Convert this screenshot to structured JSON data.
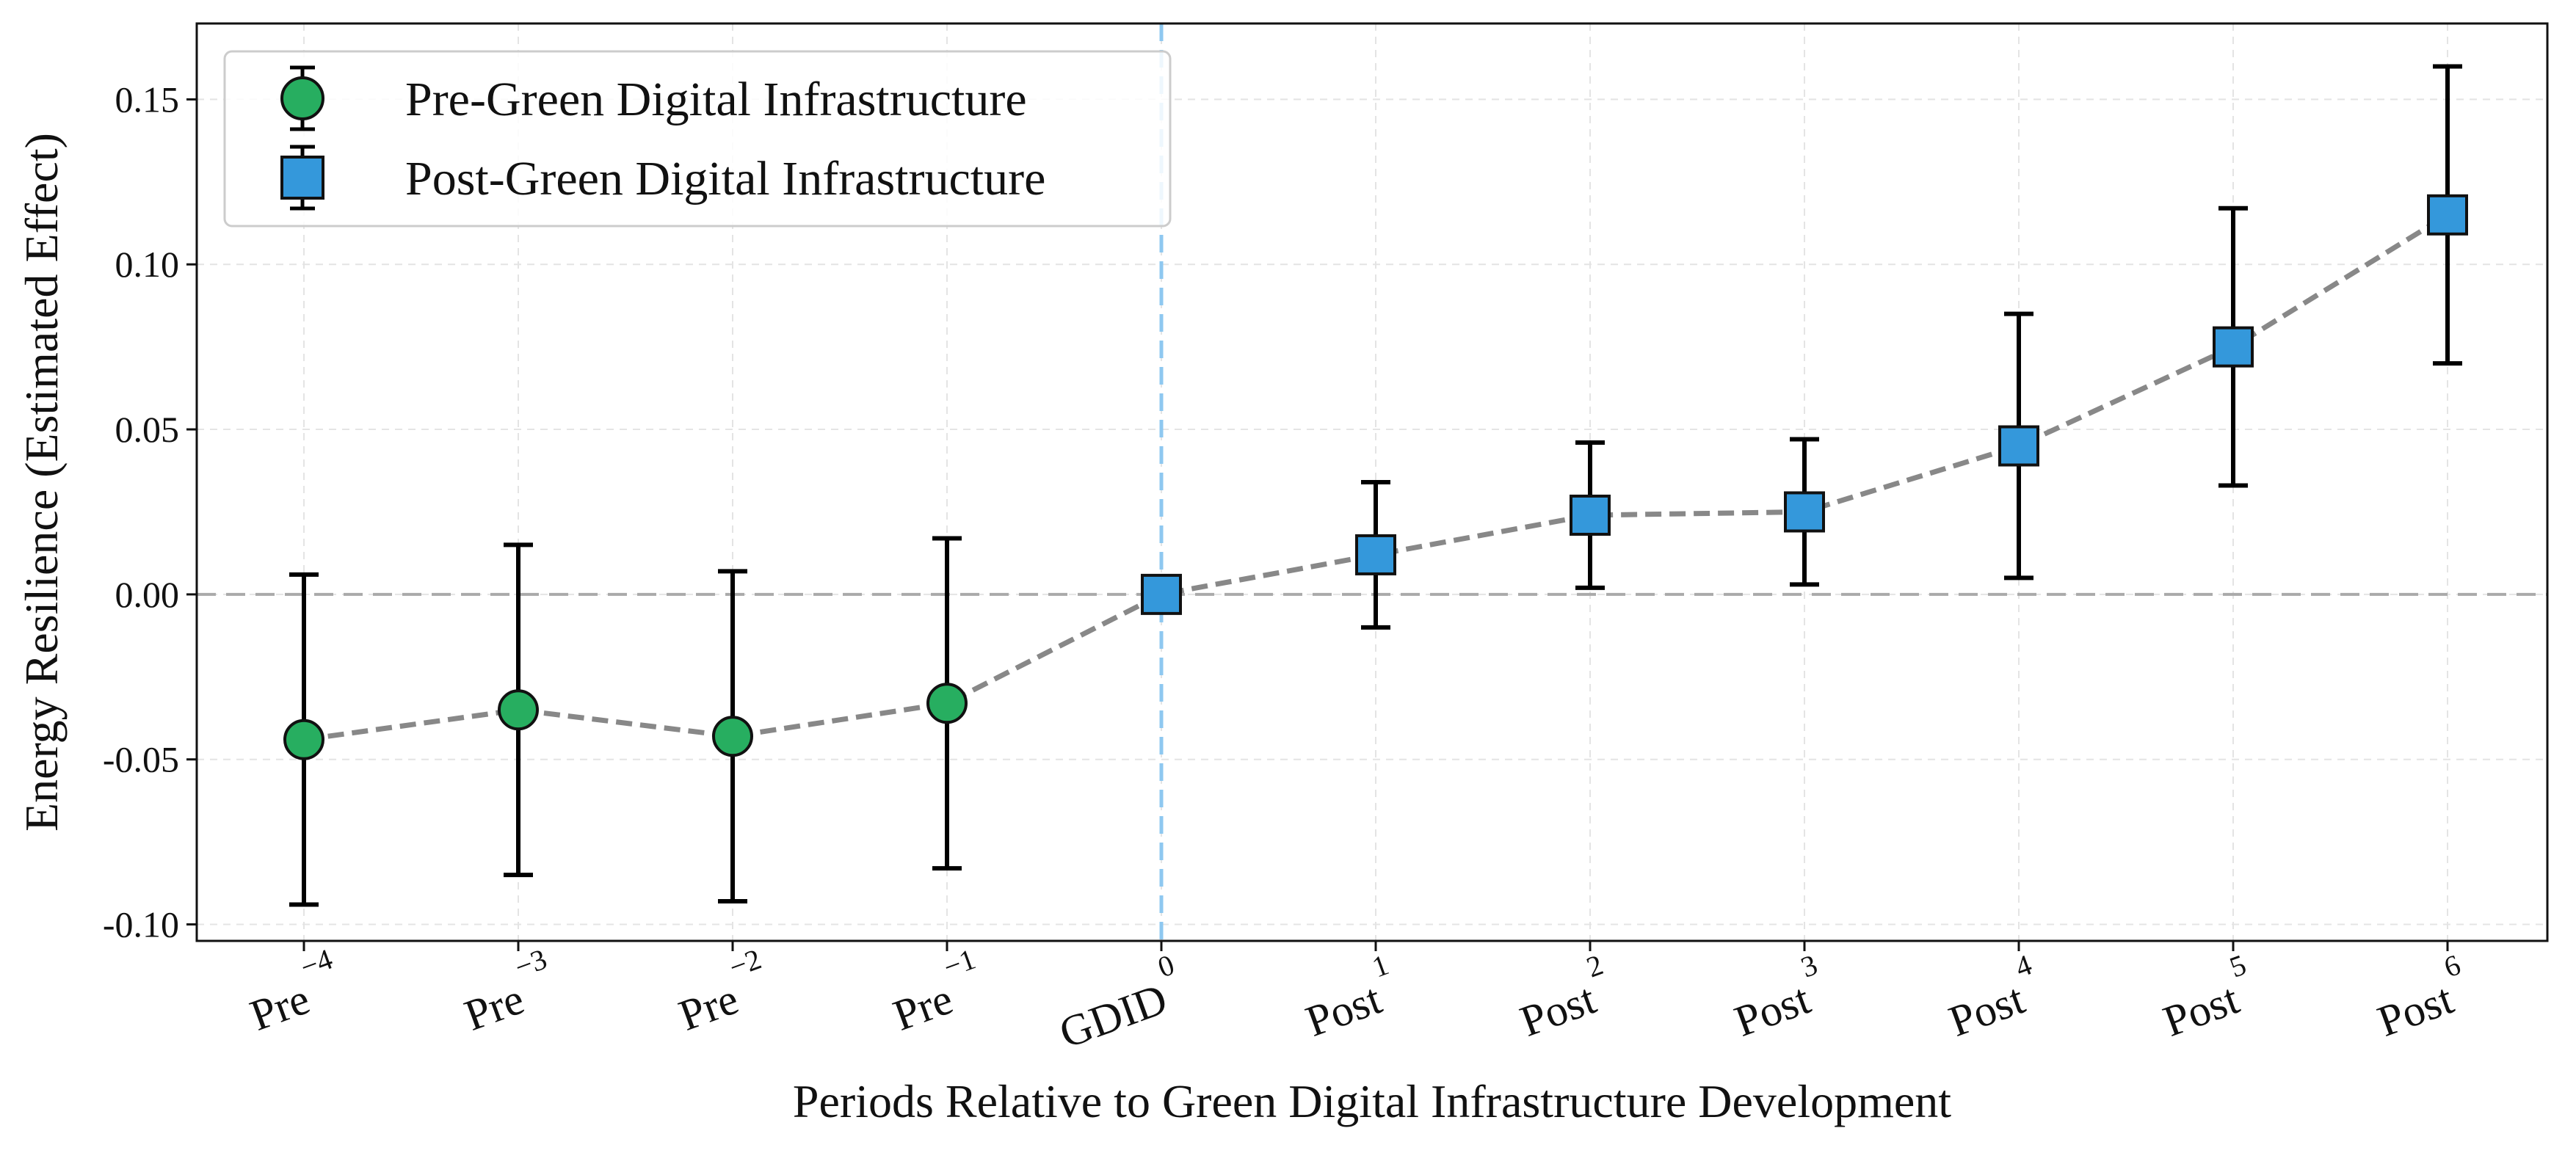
{
  "chart_data": {
    "type": "scatter",
    "xlabel": "Periods Relative to Green Digital Infrastructure Development",
    "ylabel": "Energy Resilience (Estimated Effect)",
    "categories": [
      {
        "base": "Pre",
        "sup": "−4"
      },
      {
        "base": "Pre",
        "sup": "−3"
      },
      {
        "base": "Pre",
        "sup": "−2"
      },
      {
        "base": "Pre",
        "sup": "−1"
      },
      {
        "base": "GDID",
        "sup": "0"
      },
      {
        "base": "Post",
        "sup": "1"
      },
      {
        "base": "Post",
        "sup": "2"
      },
      {
        "base": "Post",
        "sup": "3"
      },
      {
        "base": "Post",
        "sup": "4"
      },
      {
        "base": "Post",
        "sup": "5"
      },
      {
        "base": "Post",
        "sup": "6"
      }
    ],
    "ylim": [
      -0.105,
      0.173
    ],
    "yticks": [
      {
        "value": -0.1,
        "label": "-0.10"
      },
      {
        "value": -0.05,
        "label": "-0.05"
      },
      {
        "value": 0.0,
        "label": "0.00"
      },
      {
        "value": 0.05,
        "label": "0.05"
      },
      {
        "value": 0.1,
        "label": "0.10"
      },
      {
        "value": 0.15,
        "label": "0.15"
      }
    ],
    "grid": true,
    "zero_reference_line": 0,
    "treatment_line_index": 4,
    "legend_position": "top-left",
    "series": [
      {
        "name": "Pre-Green Digital Infrastructure",
        "marker": "circle",
        "color": "#27ae60",
        "points": [
          {
            "x": 0,
            "y": -0.044,
            "lower": -0.094,
            "upper": 0.006
          },
          {
            "x": 1,
            "y": -0.035,
            "lower": -0.085,
            "upper": 0.015
          },
          {
            "x": 2,
            "y": -0.043,
            "lower": -0.093,
            "upper": 0.007
          },
          {
            "x": 3,
            "y": -0.033,
            "lower": -0.083,
            "upper": 0.017
          }
        ]
      },
      {
        "name": "Post-Green Digital Infrastructure",
        "marker": "square",
        "color": "#3498db",
        "points": [
          {
            "x": 4,
            "y": 0.0,
            "lower": 0.0,
            "upper": 0.0
          },
          {
            "x": 5,
            "y": 0.012,
            "lower": -0.01,
            "upper": 0.034
          },
          {
            "x": 6,
            "y": 0.024,
            "lower": 0.002,
            "upper": 0.046
          },
          {
            "x": 7,
            "y": 0.025,
            "lower": 0.003,
            "upper": 0.047
          },
          {
            "x": 8,
            "y": 0.045,
            "lower": 0.005,
            "upper": 0.085
          },
          {
            "x": 9,
            "y": 0.075,
            "lower": 0.033,
            "upper": 0.117
          },
          {
            "x": 10,
            "y": 0.115,
            "lower": 0.07,
            "upper": 0.16
          }
        ]
      }
    ],
    "colors": {
      "connector_line": "#888888",
      "zero_line": "#aaaaaa",
      "treatment_line": "#8ec8f0",
      "error_bar": "#000000",
      "grid": "#e4e4e4"
    }
  }
}
